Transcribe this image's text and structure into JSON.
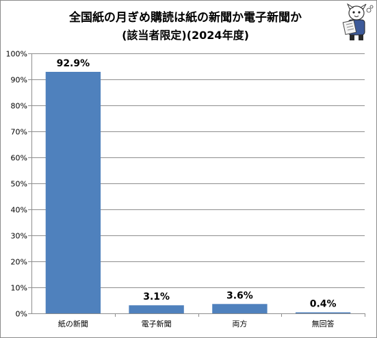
{
  "chart_data": {
    "type": "bar",
    "title": "全国紙の月ぎめ購読は紙の新聞か電子新聞か",
    "subtitle": "(該当者限定)(2024年度)",
    "categories": [
      "紙の新聞",
      "電子新聞",
      "両方",
      "無回答"
    ],
    "values": [
      92.9,
      3.1,
      3.6,
      0.4
    ],
    "data_labels": [
      "92.9%",
      "3.1%",
      "3.6%",
      "0.4%"
    ],
    "ylim": [
      0,
      100
    ],
    "yticks": [
      "0%",
      "10%",
      "20%",
      "30%",
      "40%",
      "50%",
      "60%",
      "70%",
      "80%",
      "90%",
      "100%"
    ],
    "xlabel": "",
    "ylabel": "",
    "grid": true,
    "legend": "none",
    "bar_color": "#4f81bd"
  },
  "mascot": {
    "icon": "newspaper-reading-mascot-icon"
  }
}
